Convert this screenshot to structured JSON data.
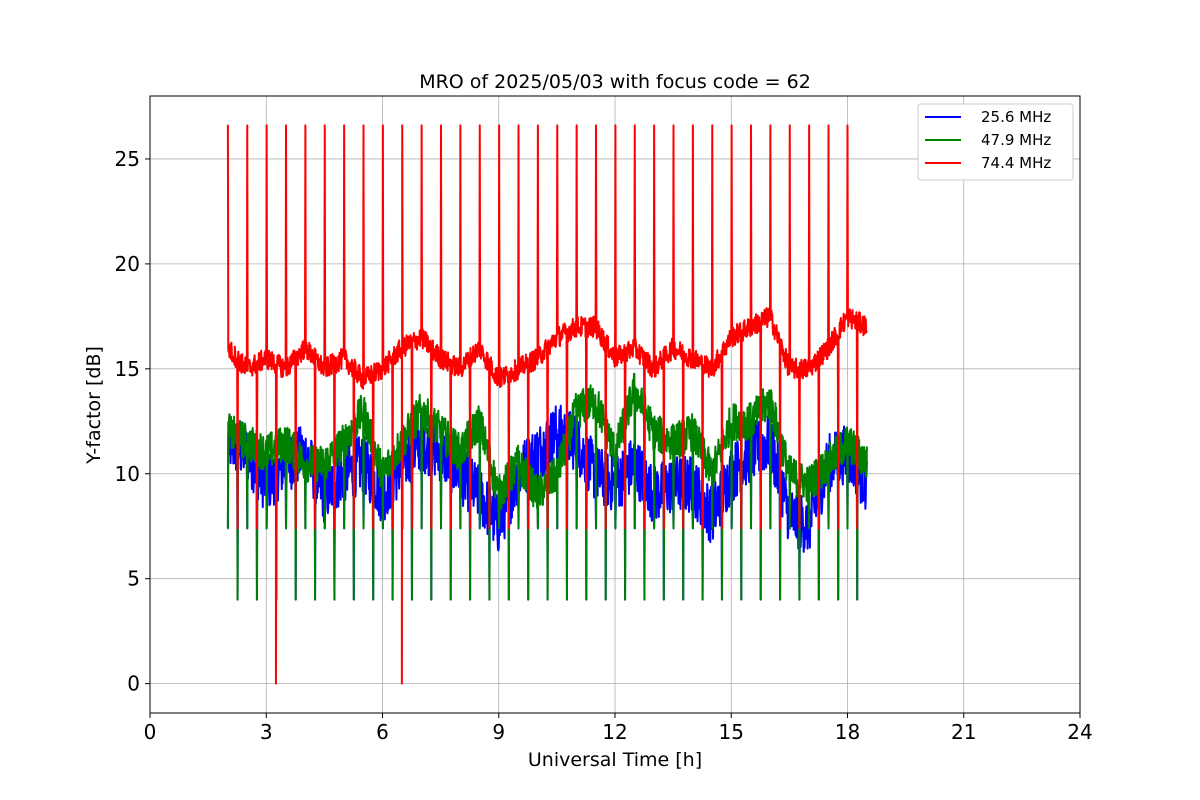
{
  "chart_data": {
    "type": "line",
    "title": "MRO of 2025/05/03 with focus code = 62",
    "xlabel": "Universal Time [h]",
    "ylabel": "Y-factor [dB]",
    "xlim": [
      0,
      24
    ],
    "ylim": [
      -1.4,
      28
    ],
    "x_ticks": [
      0,
      3,
      6,
      9,
      12,
      15,
      18,
      21,
      24
    ],
    "y_ticks": [
      0,
      5,
      10,
      15,
      20,
      25
    ],
    "grid": true,
    "legend_position": "top-right",
    "data_start_hour": 2.0,
    "data_end_hour": 18.5,
    "calibration_spike_interval_hours": 0.25,
    "dropout_hours": [
      3.25,
      6.5
    ],
    "series": [
      {
        "name": "25.6 MHz",
        "color": "#0000ff",
        "spike_low": 4.0,
        "spike_high": 7.4,
        "baseline": [
          [
            2.0,
            11.5
          ],
          [
            2.5,
            11.0
          ],
          [
            3.0,
            9.5
          ],
          [
            3.5,
            10.5
          ],
          [
            4.0,
            11.0
          ],
          [
            4.5,
            9.0
          ],
          [
            5.0,
            10.0
          ],
          [
            5.5,
            10.5
          ],
          [
            6.0,
            9.0
          ],
          [
            6.5,
            10.5
          ],
          [
            7.0,
            11.5
          ],
          [
            7.5,
            11.0
          ],
          [
            8.0,
            10.0
          ],
          [
            8.5,
            9.0
          ],
          [
            9.0,
            7.5
          ],
          [
            9.5,
            10.0
          ],
          [
            10.0,
            11.0
          ],
          [
            10.5,
            12.0
          ],
          [
            11.0,
            11.5
          ],
          [
            11.5,
            10.0
          ],
          [
            12.0,
            9.5
          ],
          [
            12.5,
            10.5
          ],
          [
            13.0,
            9.0
          ],
          [
            13.5,
            9.5
          ],
          [
            14.0,
            9.5
          ],
          [
            14.5,
            8.0
          ],
          [
            15.0,
            10.0
          ],
          [
            15.5,
            11.0
          ],
          [
            16.0,
            11.5
          ],
          [
            16.5,
            8.0
          ],
          [
            17.0,
            7.5
          ],
          [
            17.5,
            10.5
          ],
          [
            18.0,
            11.0
          ],
          [
            18.5,
            9.5
          ]
        ]
      },
      {
        "name": "47.9 MHz",
        "color": "#008000",
        "spike_low": 4.0,
        "spike_high": 7.4,
        "baseline": [
          [
            2.0,
            12.0
          ],
          [
            2.5,
            11.5
          ],
          [
            3.0,
            11.0
          ],
          [
            3.5,
            11.5
          ],
          [
            4.0,
            10.5
          ],
          [
            4.5,
            10.5
          ],
          [
            5.0,
            11.5
          ],
          [
            5.5,
            13.0
          ],
          [
            6.0,
            10.0
          ],
          [
            6.5,
            11.5
          ],
          [
            7.0,
            13.0
          ],
          [
            7.5,
            12.0
          ],
          [
            8.0,
            11.0
          ],
          [
            8.5,
            12.5
          ],
          [
            9.0,
            9.0
          ],
          [
            9.5,
            10.5
          ],
          [
            10.0,
            9.0
          ],
          [
            10.5,
            10.0
          ],
          [
            11.0,
            13.0
          ],
          [
            11.5,
            13.5
          ],
          [
            12.0,
            11.0
          ],
          [
            12.5,
            14.0
          ],
          [
            13.0,
            12.0
          ],
          [
            13.5,
            11.5
          ],
          [
            14.0,
            12.0
          ],
          [
            14.5,
            10.0
          ],
          [
            15.0,
            12.5
          ],
          [
            15.5,
            12.5
          ],
          [
            16.0,
            13.5
          ],
          [
            16.5,
            10.0
          ],
          [
            17.0,
            9.5
          ],
          [
            17.5,
            10.5
          ],
          [
            18.0,
            11.5
          ],
          [
            18.5,
            10.5
          ]
        ]
      },
      {
        "name": "74.4 MHz",
        "color": "#ff0000",
        "spike_low": 7.4,
        "spike_high": 26.6,
        "baseline": [
          [
            2.0,
            16.0
          ],
          [
            2.5,
            15.0
          ],
          [
            3.0,
            15.5
          ],
          [
            3.5,
            15.0
          ],
          [
            4.0,
            16.0
          ],
          [
            4.5,
            15.0
          ],
          [
            5.0,
            15.5
          ],
          [
            5.5,
            14.5
          ],
          [
            6.0,
            15.0
          ],
          [
            6.5,
            16.0
          ],
          [
            7.0,
            16.5
          ],
          [
            7.5,
            15.5
          ],
          [
            8.0,
            15.0
          ],
          [
            8.5,
            16.0
          ],
          [
            9.0,
            14.5
          ],
          [
            9.5,
            15.0
          ],
          [
            10.0,
            15.5
          ],
          [
            10.5,
            16.5
          ],
          [
            11.0,
            17.0
          ],
          [
            11.5,
            17.0
          ],
          [
            12.0,
            15.5
          ],
          [
            12.5,
            16.0
          ],
          [
            13.0,
            15.0
          ],
          [
            13.5,
            16.0
          ],
          [
            14.0,
            15.5
          ],
          [
            14.5,
            15.0
          ],
          [
            15.0,
            16.5
          ],
          [
            15.5,
            17.0
          ],
          [
            16.0,
            17.5
          ],
          [
            16.5,
            15.0
          ],
          [
            17.0,
            15.0
          ],
          [
            17.5,
            16.0
          ],
          [
            18.0,
            17.5
          ],
          [
            18.5,
            17.0
          ]
        ]
      }
    ]
  }
}
